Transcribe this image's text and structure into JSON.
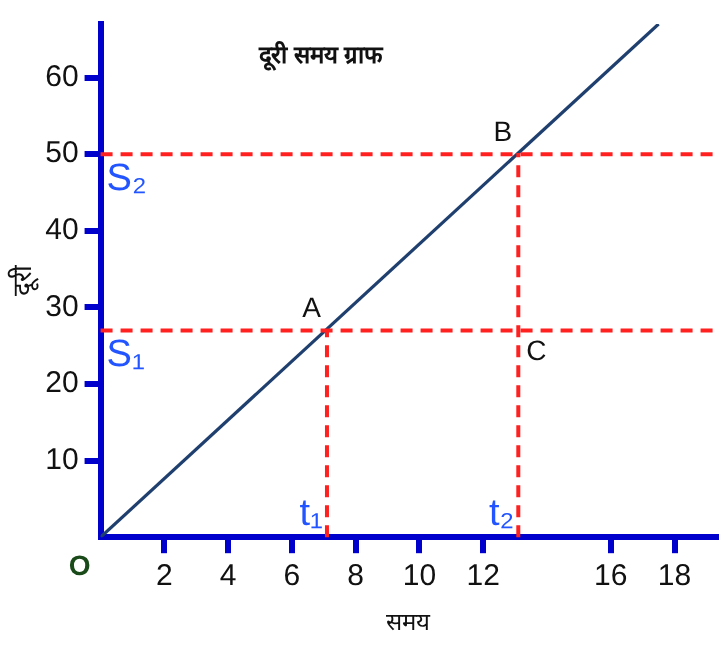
{
  "chart_data": {
    "type": "line",
    "title": "दूरी समय ग्राफ",
    "xlabel": "समय",
    "ylabel": "दूरी",
    "x": [
      0,
      17.5
    ],
    "series": [
      {
        "color": "#1f3f6f",
        "values": [
          0,
          67
        ]
      }
    ],
    "xlim": [
      0,
      19.3
    ],
    "ylim": [
      0,
      67
    ],
    "xticks": [
      {
        "value": 2,
        "label": "2"
      },
      {
        "value": 4,
        "label": "4"
      },
      {
        "value": 6,
        "label": "6"
      },
      {
        "value": 8,
        "label": "8"
      },
      {
        "value": 10,
        "label": "10"
      },
      {
        "value": 12,
        "label": "12"
      },
      16,
      18
    ],
    "yticks": [
      {
        "value": 10,
        "label": "10"
      },
      {
        "value": 20,
        "label": "20"
      },
      {
        "value": 30,
        "label": "30"
      },
      {
        "value": 40,
        "label": "40"
      },
      {
        "value": 50,
        "label": "50"
      },
      {
        "value": 60,
        "label": "60"
      }
    ],
    "ref_lines": [
      {
        "axis": "y",
        "value": 27,
        "label": "S₁",
        "color": "#ff2020",
        "line_style": "dashed"
      },
      {
        "axis": "y",
        "value": 50,
        "label": "S₂",
        "color": "#ff2020",
        "line_style": "dashed"
      },
      {
        "axis": "x",
        "value": 7.1,
        "label": "t₁",
        "color": "#ff2020",
        "line_style": "dashed"
      },
      {
        "axis": "x",
        "value": 13.1,
        "label": "t₂",
        "color": "#ff2020",
        "line_style": "dashed"
      }
    ],
    "annotations": [
      "A",
      "B",
      "C",
      "O"
    ],
    "grid": false,
    "legend": false,
    "marker": "none",
    "line_style": "solid"
  }
}
